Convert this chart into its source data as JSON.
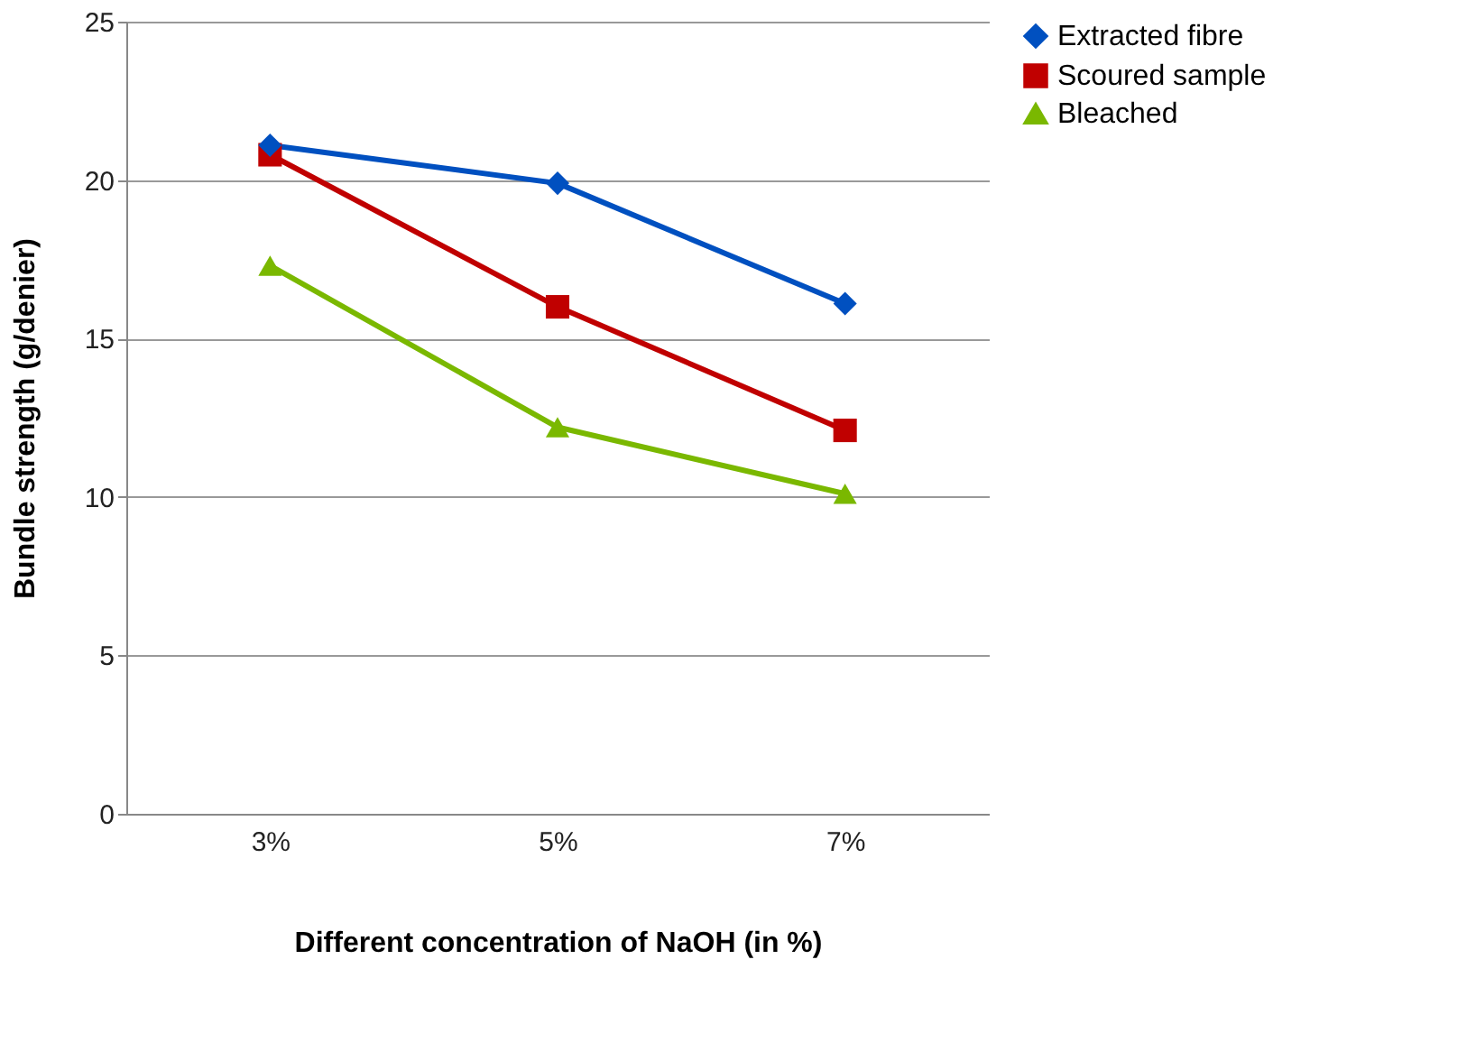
{
  "chart_data": {
    "type": "line",
    "xlabel": "Different concentration of NaOH (in %)",
    "ylabel": "Bundle strength (g/denier)",
    "categories": [
      "3%",
      "5%",
      "7%"
    ],
    "series": [
      {
        "name": "Extracted fibre",
        "color": "#0050c0",
        "marker": "diamond",
        "values": [
          21.1,
          19.9,
          16.1
        ]
      },
      {
        "name": "Scoured sample",
        "color": "#c00000",
        "marker": "square",
        "values": [
          20.8,
          16.0,
          12.1
        ]
      },
      {
        "name": "Bleached",
        "color": "#7ab800",
        "marker": "triangle",
        "values": [
          17.3,
          12.2,
          10.1
        ]
      }
    ],
    "ylim": [
      0,
      25
    ],
    "yticks": [
      0,
      5,
      10,
      15,
      20,
      25
    ],
    "grid": "y",
    "legend": "right",
    "line_style": "solid"
  }
}
